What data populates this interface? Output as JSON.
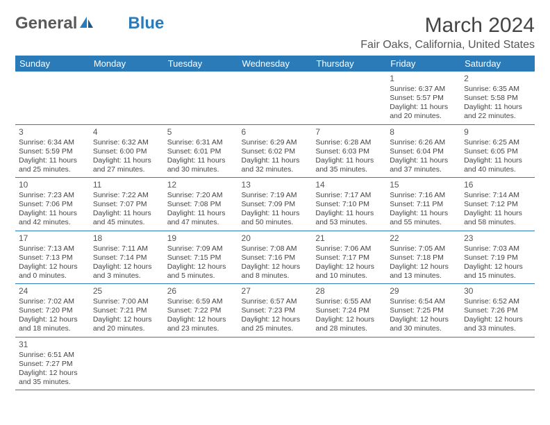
{
  "logo": {
    "text1": "General",
    "text2": "Blue",
    "icon_color": "#2b7bb9"
  },
  "title": "March 2024",
  "location": "Fair Oaks, California, United States",
  "colors": {
    "header_bg": "#2b7bb9",
    "header_fg": "#ffffff",
    "text": "#444444",
    "border": "#2b7bb9"
  },
  "days_of_week": [
    "Sunday",
    "Monday",
    "Tuesday",
    "Wednesday",
    "Thursday",
    "Friday",
    "Saturday"
  ],
  "first_weekday": 5,
  "num_days": 31,
  "days": {
    "1": {
      "sunrise": "6:37 AM",
      "sunset": "5:57 PM",
      "daylight": "11 hours and 20 minutes."
    },
    "2": {
      "sunrise": "6:35 AM",
      "sunset": "5:58 PM",
      "daylight": "11 hours and 22 minutes."
    },
    "3": {
      "sunrise": "6:34 AM",
      "sunset": "5:59 PM",
      "daylight": "11 hours and 25 minutes."
    },
    "4": {
      "sunrise": "6:32 AM",
      "sunset": "6:00 PM",
      "daylight": "11 hours and 27 minutes."
    },
    "5": {
      "sunrise": "6:31 AM",
      "sunset": "6:01 PM",
      "daylight": "11 hours and 30 minutes."
    },
    "6": {
      "sunrise": "6:29 AM",
      "sunset": "6:02 PM",
      "daylight": "11 hours and 32 minutes."
    },
    "7": {
      "sunrise": "6:28 AM",
      "sunset": "6:03 PM",
      "daylight": "11 hours and 35 minutes."
    },
    "8": {
      "sunrise": "6:26 AM",
      "sunset": "6:04 PM",
      "daylight": "11 hours and 37 minutes."
    },
    "9": {
      "sunrise": "6:25 AM",
      "sunset": "6:05 PM",
      "daylight": "11 hours and 40 minutes."
    },
    "10": {
      "sunrise": "7:23 AM",
      "sunset": "7:06 PM",
      "daylight": "11 hours and 42 minutes."
    },
    "11": {
      "sunrise": "7:22 AM",
      "sunset": "7:07 PM",
      "daylight": "11 hours and 45 minutes."
    },
    "12": {
      "sunrise": "7:20 AM",
      "sunset": "7:08 PM",
      "daylight": "11 hours and 47 minutes."
    },
    "13": {
      "sunrise": "7:19 AM",
      "sunset": "7:09 PM",
      "daylight": "11 hours and 50 minutes."
    },
    "14": {
      "sunrise": "7:17 AM",
      "sunset": "7:10 PM",
      "daylight": "11 hours and 53 minutes."
    },
    "15": {
      "sunrise": "7:16 AM",
      "sunset": "7:11 PM",
      "daylight": "11 hours and 55 minutes."
    },
    "16": {
      "sunrise": "7:14 AM",
      "sunset": "7:12 PM",
      "daylight": "11 hours and 58 minutes."
    },
    "17": {
      "sunrise": "7:13 AM",
      "sunset": "7:13 PM",
      "daylight": "12 hours and 0 minutes."
    },
    "18": {
      "sunrise": "7:11 AM",
      "sunset": "7:14 PM",
      "daylight": "12 hours and 3 minutes."
    },
    "19": {
      "sunrise": "7:09 AM",
      "sunset": "7:15 PM",
      "daylight": "12 hours and 5 minutes."
    },
    "20": {
      "sunrise": "7:08 AM",
      "sunset": "7:16 PM",
      "daylight": "12 hours and 8 minutes."
    },
    "21": {
      "sunrise": "7:06 AM",
      "sunset": "7:17 PM",
      "daylight": "12 hours and 10 minutes."
    },
    "22": {
      "sunrise": "7:05 AM",
      "sunset": "7:18 PM",
      "daylight": "12 hours and 13 minutes."
    },
    "23": {
      "sunrise": "7:03 AM",
      "sunset": "7:19 PM",
      "daylight": "12 hours and 15 minutes."
    },
    "24": {
      "sunrise": "7:02 AM",
      "sunset": "7:20 PM",
      "daylight": "12 hours and 18 minutes."
    },
    "25": {
      "sunrise": "7:00 AM",
      "sunset": "7:21 PM",
      "daylight": "12 hours and 20 minutes."
    },
    "26": {
      "sunrise": "6:59 AM",
      "sunset": "7:22 PM",
      "daylight": "12 hours and 23 minutes."
    },
    "27": {
      "sunrise": "6:57 AM",
      "sunset": "7:23 PM",
      "daylight": "12 hours and 25 minutes."
    },
    "28": {
      "sunrise": "6:55 AM",
      "sunset": "7:24 PM",
      "daylight": "12 hours and 28 minutes."
    },
    "29": {
      "sunrise": "6:54 AM",
      "sunset": "7:25 PM",
      "daylight": "12 hours and 30 minutes."
    },
    "30": {
      "sunrise": "6:52 AM",
      "sunset": "7:26 PM",
      "daylight": "12 hours and 33 minutes."
    },
    "31": {
      "sunrise": "6:51 AM",
      "sunset": "7:27 PM",
      "daylight": "12 hours and 35 minutes."
    }
  },
  "labels": {
    "sunrise": "Sunrise:",
    "sunset": "Sunset:",
    "daylight": "Daylight:"
  }
}
